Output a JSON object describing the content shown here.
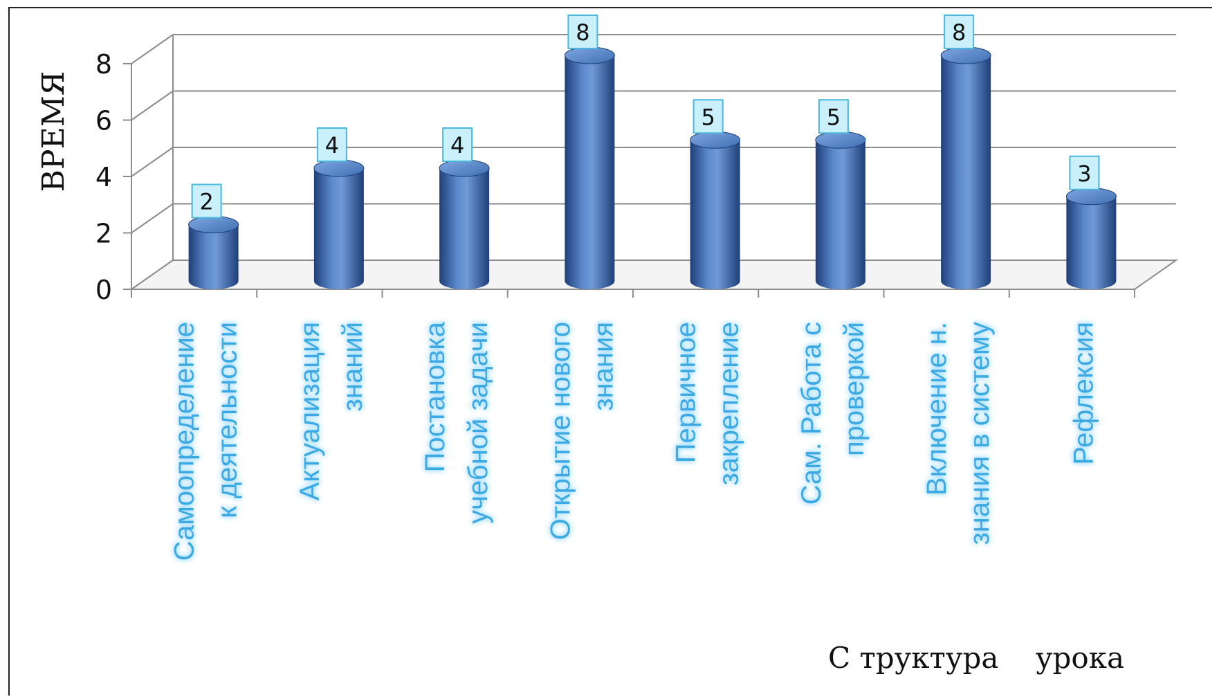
{
  "chart_data": {
    "type": "bar",
    "ylabel": "ВРЕМЯ",
    "xlabel": "С труктура    урока",
    "ylim": [
      0,
      8
    ],
    "yticks": [
      0,
      2,
      4,
      6,
      8
    ],
    "grid": true,
    "categories": [
      [
        "Самоопределение",
        "к деятельности"
      ],
      [
        "Актуализация",
        "знаний"
      ],
      [
        "Постановка",
        "учебной задачи"
      ],
      [
        "Открытие нового",
        "знания"
      ],
      [
        "Первичное",
        "закрепление"
      ],
      [
        "Сам. Работа с",
        "проверкой"
      ],
      [
        "Включение н.",
        "знания в систему"
      ],
      [
        "Рефлексия"
      ]
    ],
    "values": [
      2,
      4,
      4,
      8,
      5,
      5,
      8,
      3
    ],
    "data_labels": [
      "2",
      "4",
      "4",
      "8",
      "5",
      "5",
      "8",
      "3"
    ]
  },
  "colors": {
    "bar": "#3f6fb3",
    "bar_dark": "#1f3f78",
    "bar_light": "#6f9ad6",
    "grid": "#8c8c8c",
    "category_text": "#3aa9e3",
    "category_glow": "#bfe9ff",
    "label_bg": "#c9f0fb",
    "label_border": "#4ab8dd"
  }
}
